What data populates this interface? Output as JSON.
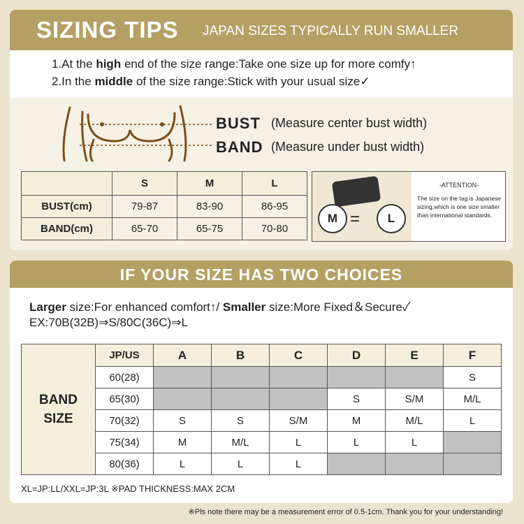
{
  "header": {
    "title": "SIZING TIPS",
    "subtitle": "JAPAN SIZES TYPICALLY RUN SMALLER"
  },
  "tips": [
    [
      "1.At the ",
      "high",
      " end of the size range:Take one size up for more comfy↑"
    ],
    [
      "2.In the ",
      "middle",
      " of the size range:Stick with your usual size✓"
    ]
  ],
  "measure": [
    {
      "label": "BUST",
      "note": "(Measure center bust width)"
    },
    {
      "label": "BAND",
      "note": "(Measure under bust width)"
    }
  ],
  "size_table": {
    "columns": [
      "S",
      "M",
      "L"
    ],
    "rows": [
      {
        "label": "BUST(cm)",
        "cells": [
          "79-87",
          "83-90",
          "86-95"
        ]
      },
      {
        "label": "BAND(cm)",
        "cells": [
          "65-70",
          "65-75",
          "70-80"
        ]
      }
    ]
  },
  "attention": {
    "left": "M",
    "equals": "=",
    "right": "L",
    "title": "-ATTENTION-",
    "text": "The size on the tag is Japanese sizing,which is one size smaller than international standards."
  },
  "choices": {
    "title": "IF YOUR SIZE HAS TWO CHOICES",
    "line1": [
      "Larger",
      " size:For enhanced comfort↑/ ",
      "Smaller",
      " size:More Fixed＆Secure✓"
    ],
    "line2": "EX:70B(32B)⇒S/80C(36C)⇒L"
  },
  "band_table": {
    "group": "BAND SIZE",
    "corner": "JP/US",
    "cups": [
      "A",
      "B",
      "C",
      "D",
      "E",
      "F"
    ],
    "rows": [
      {
        "band": "60(28)",
        "cells": [
          null,
          null,
          null,
          null,
          null,
          "S"
        ]
      },
      {
        "band": "65(30)",
        "cells": [
          null,
          null,
          null,
          "S",
          "S/M",
          "M/L"
        ]
      },
      {
        "band": "70(32)",
        "cells": [
          "S",
          "S",
          "S/M",
          "M",
          "M/L",
          "L"
        ]
      },
      {
        "band": "75(34)",
        "cells": [
          "M",
          "M/L",
          "L",
          "L",
          "L",
          null
        ]
      },
      {
        "band": "80(36)",
        "cells": [
          "L",
          "L",
          "L",
          null,
          null,
          null
        ]
      }
    ]
  },
  "notes": [
    "XL=JP:LL/XXL=JP:3L ※PAD THICKNESS:MAX 2CM",
    "※Pls note there may be a measurement error of 0.5-1cm. Thank you for your understanding!"
  ]
}
